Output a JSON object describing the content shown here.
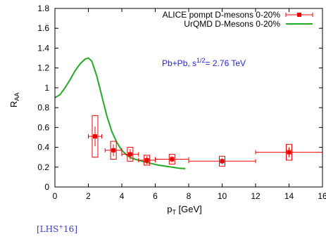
{
  "chart_data": {
    "type": "scatter",
    "xlabel": "p",
    "xlabel_sub": "T",
    "xlabel_unit": " [GeV]",
    "ylabel": "R",
    "ylabel_sub": "AA",
    "xlim": [
      0,
      16
    ],
    "ylim": [
      0,
      1.8
    ],
    "x_ticks": [
      0,
      2,
      4,
      6,
      8,
      10,
      12,
      14,
      16
    ],
    "y_ticks": [
      0,
      0.2,
      0.4,
      0.6,
      0.8,
      1,
      1.2,
      1.4,
      1.6,
      1.8
    ],
    "annotation": {
      "text_prefix": "Pb+Pb, s",
      "text_sup": "1/2",
      "text_suffix": "= 2.76 TeV",
      "x": 6.4,
      "y": 1.22,
      "color": "#2222dd"
    },
    "legend_position": "top-right",
    "series": [
      {
        "name": "ALICE pompt D-mesons 0-20%",
        "kind": "points",
        "color": "#ee0000",
        "points": [
          {
            "x": 2.4,
            "y": 0.51,
            "xerr": 0.4,
            "yerr": 0.1,
            "sys": 0.21
          },
          {
            "x": 3.5,
            "y": 0.37,
            "xerr": 0.5,
            "yerr": 0.06,
            "sys": 0.09
          },
          {
            "x": 4.5,
            "y": 0.33,
            "xerr": 0.5,
            "yerr": 0.05,
            "sys": 0.07
          },
          {
            "x": 5.5,
            "y": 0.27,
            "xerr": 0.5,
            "yerr": 0.04,
            "sys": 0.05
          },
          {
            "x": 7.0,
            "y": 0.28,
            "xerr": 1.0,
            "yerr": 0.03,
            "sys": 0.05
          },
          {
            "x": 10.0,
            "y": 0.26,
            "xerr": 2.0,
            "yerr": 0.03,
            "sys": 0.05
          },
          {
            "x": 14.0,
            "y": 0.35,
            "xerr": 2.0,
            "yerr": 0.05,
            "sys": 0.08
          }
        ]
      },
      {
        "name": "UrQMD D-Mesons 0-20%",
        "kind": "line",
        "color": "#22aa22",
        "x": [
          0,
          0.3,
          0.6,
          0.9,
          1.2,
          1.5,
          1.8,
          2.0,
          2.2,
          2.5,
          2.8,
          3.1,
          3.4,
          3.7,
          4.0,
          4.3,
          4.6,
          5.0,
          5.4,
          5.8,
          6.2,
          6.6,
          7.0,
          7.4,
          7.8
        ],
        "y": [
          0.9,
          0.93,
          1.0,
          1.08,
          1.17,
          1.24,
          1.29,
          1.3,
          1.27,
          1.12,
          0.92,
          0.72,
          0.56,
          0.45,
          0.37,
          0.32,
          0.29,
          0.27,
          0.25,
          0.235,
          0.22,
          0.21,
          0.2,
          0.19,
          0.185
        ]
      }
    ]
  },
  "citation": {
    "prefix": "[LHS",
    "sup": "+",
    "suffix": "16]"
  }
}
